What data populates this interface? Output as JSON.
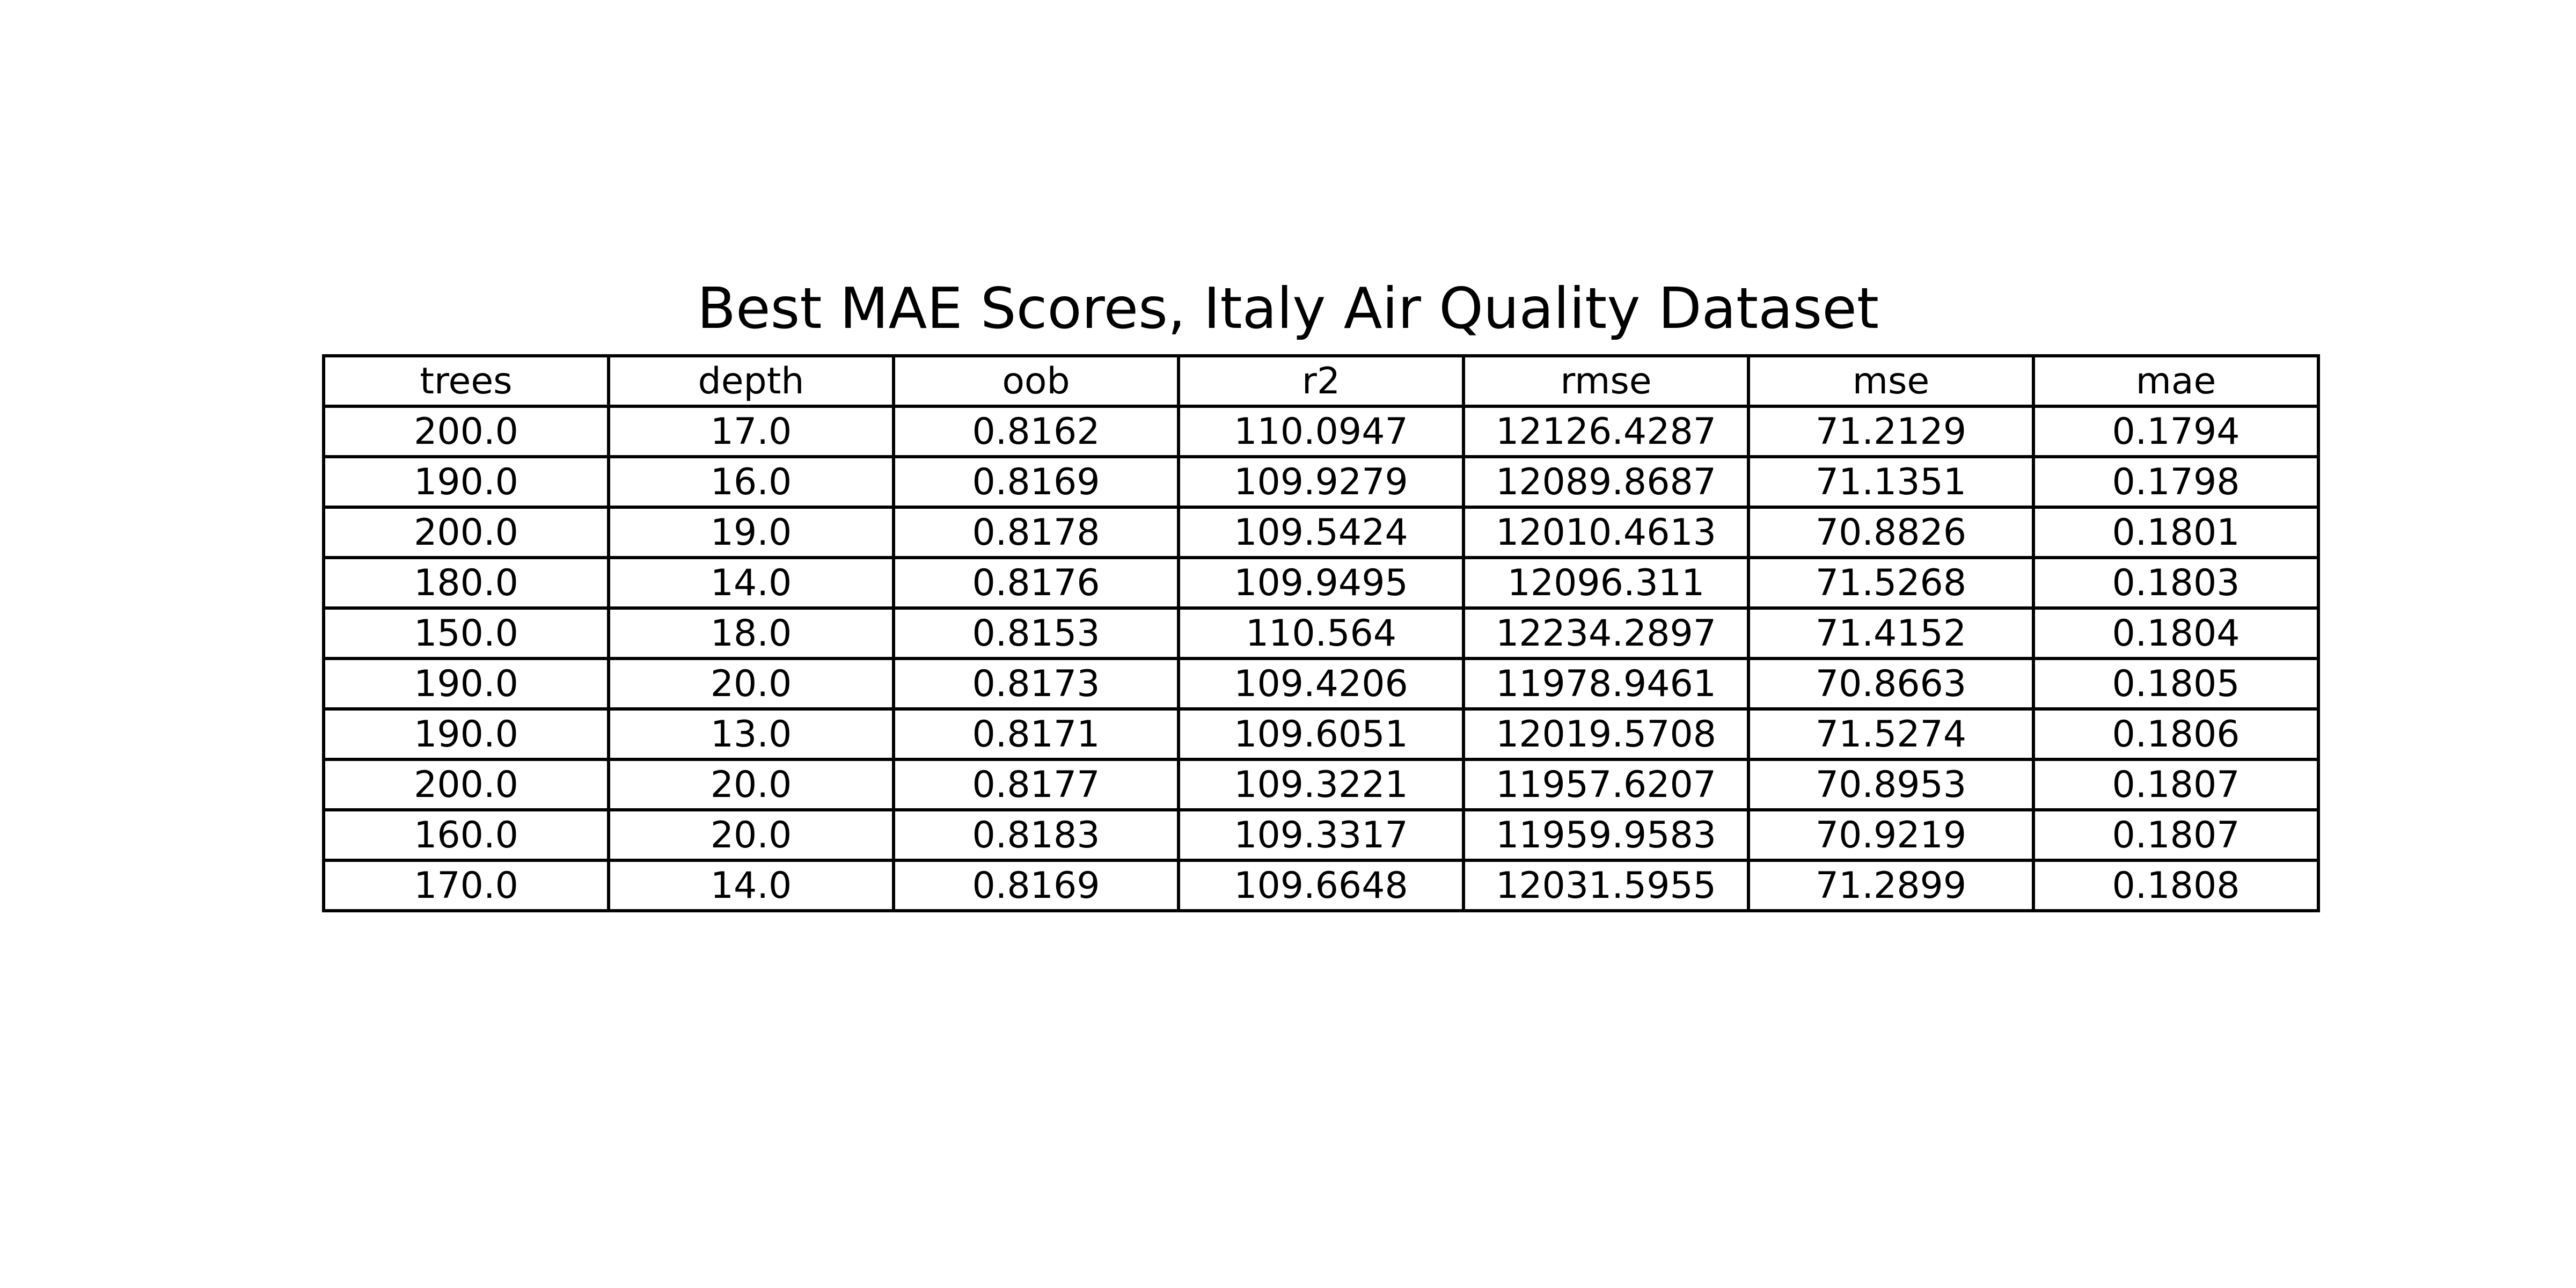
{
  "chart_data": {
    "type": "table",
    "title": "Best MAE Scores, Italy Air Quality Dataset",
    "columns": [
      "trees",
      "depth",
      "oob",
      "r2",
      "rmse",
      "mse",
      "mae"
    ],
    "rows": [
      [
        "200.0",
        "17.0",
        "0.8162",
        "110.0947",
        "12126.4287",
        "71.2129",
        "0.1794"
      ],
      [
        "190.0",
        "16.0",
        "0.8169",
        "109.9279",
        "12089.8687",
        "71.1351",
        "0.1798"
      ],
      [
        "200.0",
        "19.0",
        "0.8178",
        "109.5424",
        "12010.4613",
        "70.8826",
        "0.1801"
      ],
      [
        "180.0",
        "14.0",
        "0.8176",
        "109.9495",
        "12096.311",
        "71.5268",
        "0.1803"
      ],
      [
        "150.0",
        "18.0",
        "0.8153",
        "110.564",
        "12234.2897",
        "71.4152",
        "0.1804"
      ],
      [
        "190.0",
        "20.0",
        "0.8173",
        "109.4206",
        "11978.9461",
        "70.8663",
        "0.1805"
      ],
      [
        "190.0",
        "13.0",
        "0.8171",
        "109.6051",
        "12019.5708",
        "71.5274",
        "0.1806"
      ],
      [
        "200.0",
        "20.0",
        "0.8177",
        "109.3221",
        "11957.6207",
        "70.8953",
        "0.1807"
      ],
      [
        "160.0",
        "20.0",
        "0.8183",
        "109.3317",
        "11959.9583",
        "70.9219",
        "0.1807"
      ],
      [
        "170.0",
        "14.0",
        "0.8169",
        "109.6648",
        "12031.5955",
        "71.2899",
        "0.1808"
      ]
    ],
    "colors": {
      "border": "#000000",
      "text": "#000000",
      "background": "#ffffff"
    }
  }
}
